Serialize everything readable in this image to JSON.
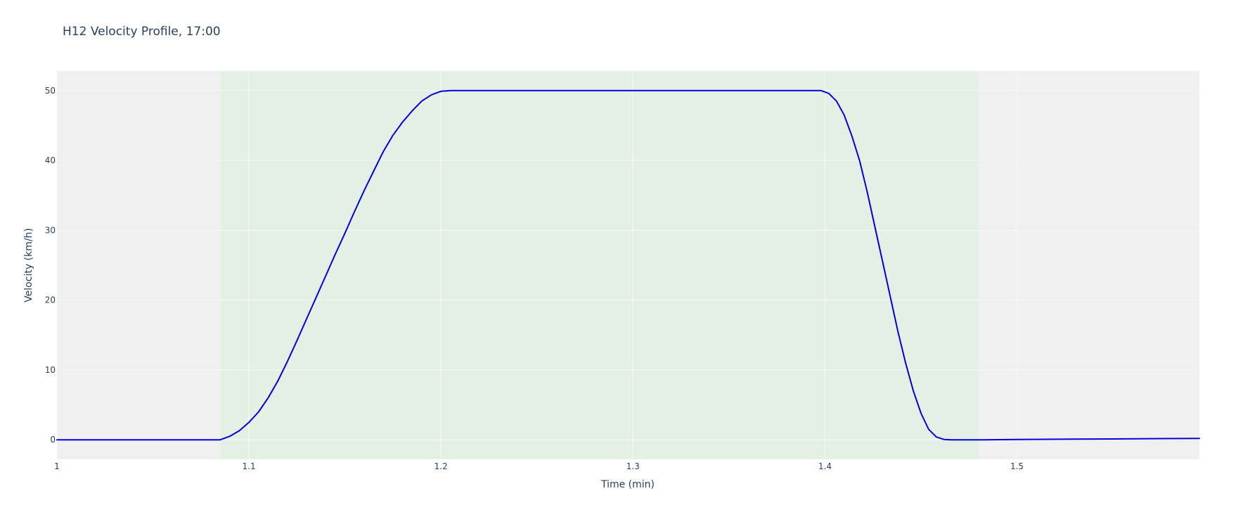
{
  "chart_data": {
    "type": "line",
    "title": "H12 Velocity Profile, 17:00",
    "xlabel": "Time (min)",
    "ylabel": "Velocity (km/h)",
    "xlim": [
      1.0,
      1.595
    ],
    "ylim": [
      -2.8,
      52.8
    ],
    "xticks": [
      1,
      1.1,
      1.2,
      1.3,
      1.4,
      1.5
    ],
    "xtick_labels": [
      "1",
      "1.1",
      "1.2",
      "1.3",
      "1.4",
      "1.5"
    ],
    "yticks": [
      0,
      10,
      20,
      30,
      40,
      50
    ],
    "ytick_labels": [
      "0",
      "10",
      "20",
      "30",
      "40",
      "50"
    ],
    "grid": true,
    "legend": "none",
    "colors": {
      "plot_background": "#f0f0f0",
      "highlight_band": "#e5f0e5",
      "grid": "#f7f7f7",
      "line": "#0000dd",
      "text": "#2a3f5f"
    },
    "highlight_band": {
      "x0": 1.085,
      "x1": 1.48
    },
    "series": [
      {
        "x": [
          1.0,
          1.085,
          1.09,
          1.095,
          1.1,
          1.105,
          1.11,
          1.115,
          1.12,
          1.125,
          1.13,
          1.135,
          1.14,
          1.145,
          1.15,
          1.155,
          1.16,
          1.165,
          1.17,
          1.175,
          1.18,
          1.185,
          1.19,
          1.195,
          1.2,
          1.205,
          1.21,
          1.215,
          1.22,
          1.225,
          1.23,
          1.235,
          1.24,
          1.245,
          1.25,
          1.3,
          1.35,
          1.398,
          1.402,
          1.406,
          1.41,
          1.414,
          1.418,
          1.422,
          1.426,
          1.43,
          1.434,
          1.438,
          1.442,
          1.446,
          1.45,
          1.454,
          1.458,
          1.462,
          1.466,
          1.47,
          1.474,
          1.478,
          1.482,
          1.5,
          1.55,
          1.595
        ],
        "values": [
          0.0,
          0.0,
          0.5,
          1.3,
          2.5,
          4.0,
          6.0,
          8.4,
          11.2,
          14.2,
          17.3,
          20.4,
          23.5,
          26.6,
          29.6,
          32.7,
          35.7,
          38.5,
          41.3,
          43.6,
          45.5,
          47.1,
          48.5,
          49.4,
          49.9,
          50.0,
          50.0,
          50.0,
          50.0,
          50.0,
          50.0,
          50.0,
          50.0,
          50.0,
          50.0,
          50.0,
          50.0,
          50.0,
          49.6,
          48.5,
          46.5,
          43.5,
          40.0,
          35.5,
          30.5,
          25.5,
          20.5,
          15.5,
          11.0,
          7.0,
          3.8,
          1.5,
          0.4,
          0.05,
          0.0,
          0.0,
          0.0,
          0.0,
          0.0,
          0.05,
          0.12,
          0.2
        ]
      }
    ]
  }
}
